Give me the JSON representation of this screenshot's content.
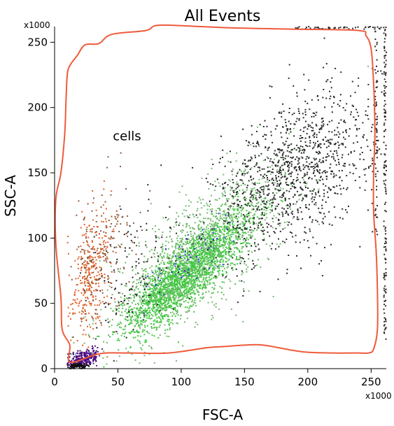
{
  "chart_data": {
    "type": "scatter",
    "title": "All Events",
    "xlabel": "FSC-A",
    "ylabel": "SSC-A",
    "x_multiplier": "x1000",
    "y_multiplier": "x1000",
    "xlim": [
      0,
      262
    ],
    "ylim": [
      0,
      262
    ],
    "x_ticks": [
      0,
      50,
      100,
      150,
      200,
      250
    ],
    "y_ticks": [
      0,
      50,
      100,
      150,
      200,
      250
    ],
    "gate": {
      "name": "cells",
      "label_pos": [
        46,
        175
      ],
      "color": "#ef5b3c",
      "vertices": [
        [
          12,
          5
        ],
        [
          12,
          18
        ],
        [
          6,
          30
        ],
        [
          5,
          55
        ],
        [
          1,
          95
        ],
        [
          1,
          130
        ],
        [
          5,
          150
        ],
        [
          8,
          180
        ],
        [
          9,
          205
        ],
        [
          10,
          225
        ],
        [
          12,
          232
        ],
        [
          18,
          240
        ],
        [
          24,
          248
        ],
        [
          35,
          249
        ],
        [
          45,
          256
        ],
        [
          72,
          259
        ],
        [
          82,
          263
        ],
        [
          115,
          262
        ],
        [
          140,
          261
        ],
        [
          190,
          260
        ],
        [
          240,
          259
        ],
        [
          246,
          255
        ],
        [
          250,
          245
        ],
        [
          252,
          218
        ],
        [
          253,
          180
        ],
        [
          252,
          150
        ],
        [
          252,
          120
        ],
        [
          254,
          90
        ],
        [
          255,
          60
        ],
        [
          255,
          30
        ],
        [
          252,
          15
        ],
        [
          248,
          12
        ],
        [
          240,
          12
        ],
        [
          220,
          12
        ],
        [
          195,
          13
        ],
        [
          165,
          18
        ],
        [
          150,
          18
        ],
        [
          135,
          17
        ],
        [
          120,
          16
        ],
        [
          90,
          12
        ],
        [
          60,
          12
        ],
        [
          40,
          12
        ],
        [
          30,
          10
        ]
      ]
    },
    "series": [
      {
        "name": "",
        "color": "#3ec93e",
        "description": "dense core population",
        "clusters": [
          {
            "n": 1700,
            "cx": 110,
            "cy": 78,
            "sx": 24,
            "sy": 22,
            "rho": 0.82
          },
          {
            "n": 450,
            "cx": 88,
            "cy": 58,
            "sx": 14,
            "sy": 14,
            "rho": 0.7
          }
        ]
      },
      {
        "name": "",
        "color": "#76b971",
        "description": "sparse outer population",
        "clusters": [
          {
            "n": 1300,
            "cx": 110,
            "cy": 85,
            "sx": 38,
            "sy": 35,
            "rho": 0.78
          }
        ]
      },
      {
        "name": "",
        "color": "#2a2a2a",
        "description": "upper-right tail and background",
        "clusters": [
          {
            "n": 1150,
            "cx": 190,
            "cy": 150,
            "sx": 32,
            "sy": 32,
            "rho": 0.5
          },
          {
            "n": 140,
            "cx": 60,
            "cy": 70,
            "sx": 18,
            "sy": 28,
            "rho": 0.4
          }
        ],
        "edge_columns": [
          {
            "n": 150,
            "x": 262,
            "ymin": 20,
            "ymax": 262
          },
          {
            "n": 60,
            "x": 255,
            "ymin": 100,
            "ymax": 262
          }
        ],
        "edge_rows": [
          {
            "n": 55,
            "y": 262,
            "xmin": 190,
            "xmax": 262
          }
        ]
      },
      {
        "name": "",
        "color": "#e0622a",
        "description": "left side population",
        "clusters": [
          {
            "n": 320,
            "cx": 28,
            "cy": 72,
            "sx": 9,
            "sy": 24,
            "rho": 0.3
          }
        ]
      },
      {
        "name": "",
        "color": "#8b5a3c",
        "description": "left side population (brown)",
        "clusters": [
          {
            "n": 160,
            "cx": 40,
            "cy": 90,
            "sx": 12,
            "sy": 25,
            "rho": 0.3
          }
        ]
      },
      {
        "name": "",
        "color": "#4b0f85",
        "description": "low debris population",
        "clusters": [
          {
            "n": 280,
            "cx": 22,
            "cy": 7,
            "sx": 7,
            "sy": 4,
            "rho": 0.5
          }
        ]
      },
      {
        "name": "",
        "color": "#111111",
        "description": "floor events",
        "clusters": [
          {
            "n": 90,
            "cx": 18,
            "cy": 2,
            "sx": 5,
            "sy": 1.2,
            "rho": 0.2
          }
        ]
      },
      {
        "name": "",
        "color": "#3a3ad8",
        "description": "scattered blue events",
        "clusters": [
          {
            "n": 60,
            "cx": 105,
            "cy": 85,
            "sx": 18,
            "sy": 15,
            "rho": 0.7
          }
        ]
      }
    ]
  }
}
